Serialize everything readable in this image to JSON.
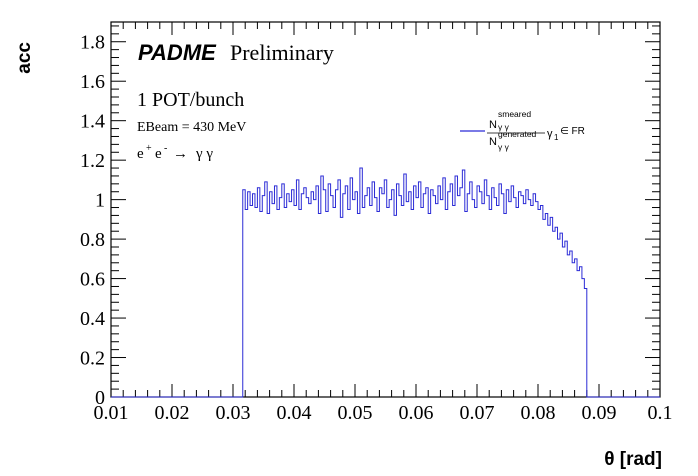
{
  "chart_data": {
    "type": "line",
    "style": "step-histogram",
    "xlabel": "θ [rad]",
    "ylabel": "acc",
    "xlim": [
      0.01,
      0.1
    ],
    "ylim": [
      0,
      1.9
    ],
    "x_ticks": [
      "0.01",
      "0.02",
      "0.03",
      "0.04",
      "0.05",
      "0.06",
      "0.07",
      "0.08",
      "0.09",
      "0.1"
    ],
    "y_ticks": [
      "0",
      "0.2",
      "0.4",
      "0.6",
      "0.8",
      "1",
      "1.2",
      "1.4",
      "1.6",
      "1.8"
    ],
    "bin_width": 0.0004,
    "series": [
      {
        "name": "N_γγ^smeared / N_γγ^generated, γ1 ∈ FR",
        "color": "#2b2bd6",
        "x": [
          0.01,
          0.0112,
          0.0124,
          0.0136,
          0.0148,
          0.016,
          0.0172,
          0.0184,
          0.0196,
          0.0208,
          0.022,
          0.0232,
          0.0244,
          0.0256,
          0.0268,
          0.028,
          0.0292,
          0.0304,
          0.0312,
          0.0316,
          0.032,
          0.0324,
          0.0328,
          0.0332,
          0.0336,
          0.034,
          0.0344,
          0.0348,
          0.0352,
          0.0356,
          0.036,
          0.0364,
          0.0368,
          0.0372,
          0.0376,
          0.038,
          0.0384,
          0.0388,
          0.0392,
          0.0396,
          0.04,
          0.0404,
          0.0408,
          0.0412,
          0.0416,
          0.042,
          0.0424,
          0.0428,
          0.0432,
          0.0436,
          0.044,
          0.0444,
          0.0448,
          0.0452,
          0.0456,
          0.046,
          0.0464,
          0.0468,
          0.0472,
          0.0476,
          0.048,
          0.0484,
          0.0488,
          0.0492,
          0.0496,
          0.05,
          0.0504,
          0.0508,
          0.0512,
          0.0516,
          0.052,
          0.0524,
          0.0528,
          0.0532,
          0.0536,
          0.054,
          0.0544,
          0.0548,
          0.0552,
          0.0556,
          0.056,
          0.0564,
          0.0568,
          0.0572,
          0.0576,
          0.058,
          0.0584,
          0.0588,
          0.0592,
          0.0596,
          0.06,
          0.0604,
          0.0608,
          0.0612,
          0.0616,
          0.062,
          0.0624,
          0.0628,
          0.0632,
          0.0636,
          0.064,
          0.0644,
          0.0648,
          0.0652,
          0.0656,
          0.066,
          0.0664,
          0.0668,
          0.0672,
          0.0676,
          0.068,
          0.0684,
          0.0688,
          0.0692,
          0.0696,
          0.07,
          0.0704,
          0.0708,
          0.0712,
          0.0716,
          0.072,
          0.0724,
          0.0728,
          0.0732,
          0.0736,
          0.074,
          0.0744,
          0.0748,
          0.0752,
          0.0756,
          0.076,
          0.0764,
          0.0768,
          0.0772,
          0.0776,
          0.078,
          0.0784,
          0.0788,
          0.0792,
          0.0796,
          0.08,
          0.0804,
          0.0808,
          0.0812,
          0.0816,
          0.082,
          0.0824,
          0.0828,
          0.0832,
          0.0836,
          0.084,
          0.0844,
          0.0848,
          0.0852,
          0.0856,
          0.086,
          0.0864,
          0.0868,
          0.0872,
          0.0876,
          0.088,
          0.0892,
          0.0904,
          0.0916,
          0.0928,
          0.094,
          0.0952,
          0.0964,
          0.0976,
          0.0988
        ],
        "y": [
          0,
          0,
          0,
          0,
          0,
          0,
          0,
          0,
          0,
          0,
          0,
          0,
          0,
          0,
          0,
          0,
          0,
          0,
          0,
          1.05,
          0.95,
          1.04,
          0.97,
          1.03,
          0.96,
          1.06,
          0.94,
          1.02,
          1.09,
          0.93,
          1.04,
          0.98,
          1.07,
          0.95,
          1.01,
          1.08,
          0.96,
          1.03,
          0.99,
          1.05,
          0.97,
          1.1,
          0.95,
          1.03,
          1.06,
          1.01,
          0.98,
          1.04,
          1.0,
          1.07,
          0.93,
          1.12,
          1.05,
          0.94,
          1.08,
          1.02,
          0.96,
          1.05,
          1.1,
          0.91,
          1.03,
          1.07,
          0.95,
          1.11,
          1.0,
          1.04,
          0.93,
          1.16,
          0.96,
          1.02,
          1.06,
          0.97,
          1.09,
          1.01,
          0.94,
          1.06,
          1.03,
          1.1,
          0.96,
          1.0,
          1.05,
          0.92,
          1.08,
          1.02,
          0.97,
          1.13,
          0.99,
          1.04,
          0.95,
          1.07,
          1.01,
          1.09,
          0.96,
          1.03,
          1.06,
          0.93,
          1.05,
          1.02,
          0.98,
          1.07,
          1.0,
          1.11,
          0.95,
          1.04,
          1.08,
          0.97,
          1.12,
          1.02,
          1.06,
          1.15,
          0.94,
          1.03,
          1.09,
          1.0,
          0.96,
          1.07,
          1.04,
          0.98,
          1.1,
          1.02,
          0.95,
          1.06,
          1.01,
          0.97,
          1.08,
          1.03,
          0.93,
          1.05,
          0.99,
          1.07,
          1.01,
          0.96,
          1.04,
          1.02,
          0.98,
          1.05,
          1.0,
          0.97,
          1.03,
          0.99,
          0.95,
          0.97,
          0.9,
          0.93,
          0.87,
          0.91,
          0.84,
          0.86,
          0.8,
          0.83,
          0.76,
          0.79,
          0.72,
          0.74,
          0.68,
          0.7,
          0.64,
          0.66,
          0.6,
          0.55,
          0,
          0,
          0,
          0,
          0,
          0,
          0,
          0,
          0,
          0
        ]
      }
    ]
  },
  "annotations": {
    "brand": "PADME",
    "preliminary": "Preliminary",
    "pot": "1 POT/bunch",
    "ebeam": "EBeam = 430 MeV",
    "process_lhs": "e",
    "process_plus": "+",
    "process_minus": "-",
    "process_arrow": "→",
    "process_rhs": "γ γ"
  },
  "legend": {
    "numerator_N": "N",
    "numerator_sub": "γ γ",
    "numerator_sup": "smeared",
    "denominator_N": "N",
    "denominator_sub": "γ γ",
    "denominator_sup": "generated",
    "condition": "γ",
    "condition_sub": "1",
    "condition_rest": "∈ FR"
  }
}
